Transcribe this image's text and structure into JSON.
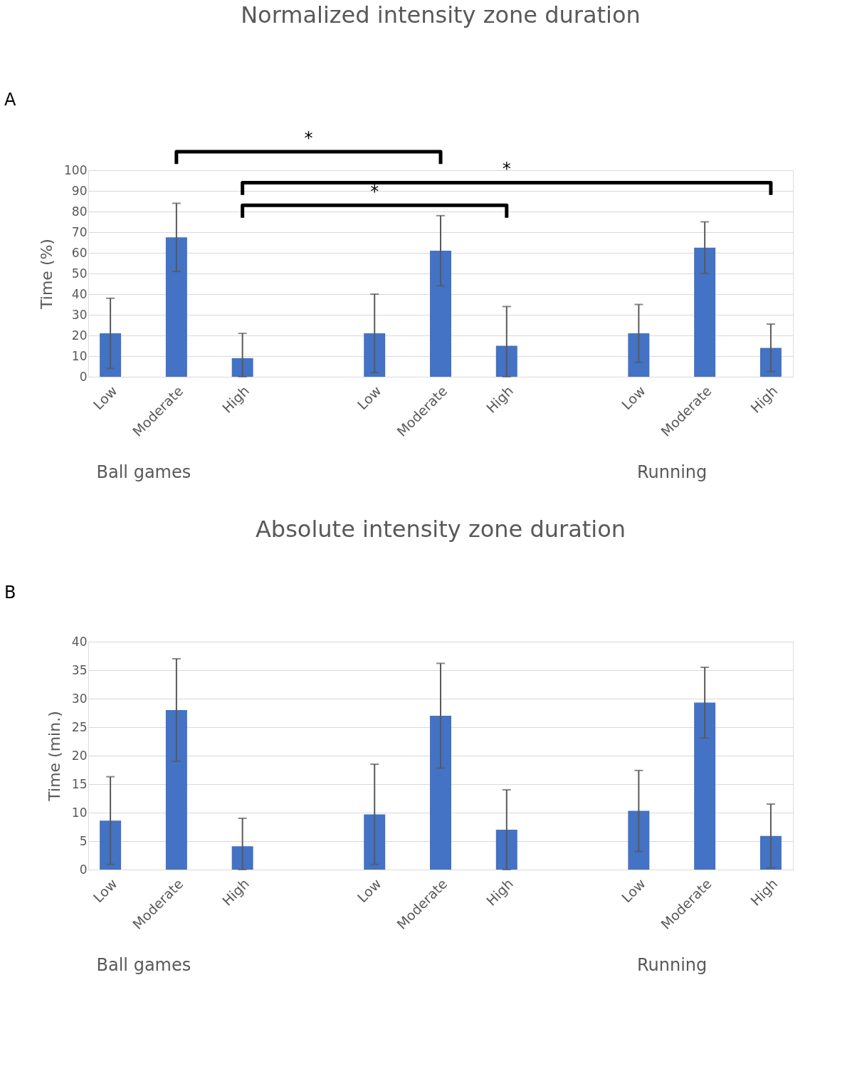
{
  "chart_data": [
    {
      "type": "bar",
      "title": "Normalized intensity zone duration",
      "ylabel": "Time (%)",
      "categories": [
        "Low",
        "Moderate",
        "High",
        null,
        "Low",
        "Moderate",
        "High",
        null,
        "Low",
        "Moderate",
        "High"
      ],
      "values": [
        21,
        67.5,
        9,
        null,
        21,
        61,
        15,
        null,
        21,
        62.5,
        14
      ],
      "errors": [
        17,
        16.5,
        [
          0,
          21
        ],
        null,
        19,
        17,
        [
          0,
          34
        ],
        null,
        14,
        12.5,
        11.5
      ],
      "color": "#4472c4",
      "ylim": [
        0,
        100
      ],
      "yticks": [
        0,
        10,
        20,
        30,
        40,
        50,
        60,
        70,
        80,
        90,
        100
      ],
      "grid": "y",
      "annotations": [
        "A",
        "*",
        "*",
        "*",
        "Ball games",
        "Running"
      ]
    },
    {
      "type": "bar",
      "title": "Absolute intensity zone duration",
      "ylabel": "Time (min.)",
      "categories": [
        "Low",
        "Moderate",
        "High",
        null,
        "Low",
        "Moderate",
        "High",
        null,
        "Low",
        "Moderate",
        "High"
      ],
      "values": [
        8.6,
        28,
        4.1,
        null,
        9.7,
        27,
        7,
        null,
        10.3,
        29.3,
        5.9
      ],
      "errors": [
        7.7,
        9,
        [
          0,
          9
        ],
        null,
        8.8,
        9.2,
        7,
        null,
        7.1,
        6.2,
        5.6
      ],
      "color": "#4472c4",
      "ylim": [
        0,
        40
      ],
      "yticks": [
        0,
        5,
        10,
        15,
        20,
        25,
        30,
        35,
        40
      ],
      "grid": "y",
      "annotations": [
        "B",
        "Ball games",
        "Running"
      ]
    }
  ]
}
